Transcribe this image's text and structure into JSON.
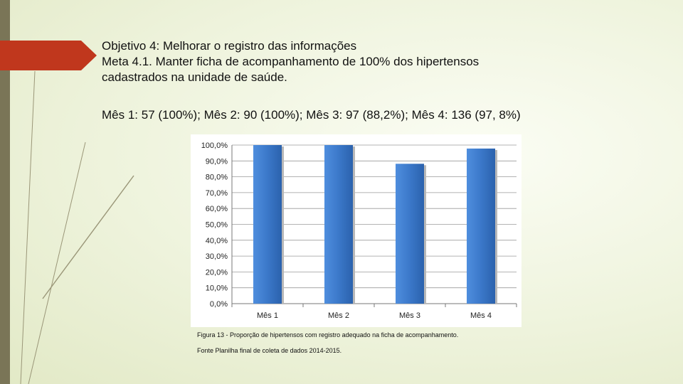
{
  "heading": {
    "line1": "Objetivo 4: Melhorar o registro das informações",
    "line2": "Meta 4.1. Manter ficha de acompanhamento de 100% dos hipertensos",
    "line3": "cadastrados na unidade de saúde."
  },
  "summary": "Mês 1: 57 (100%); Mês 2: 90 (100%); Mês 3: 97 (88,2%); Mês 4: 136 (97, 8%)",
  "colors": {
    "accent": "#c0371d",
    "bar": "#3b78c9",
    "sidebar": "#7a7557"
  },
  "chart_data": {
    "type": "bar",
    "title": "",
    "xlabel": "",
    "ylabel": "",
    "categories": [
      "Mês 1",
      "Mês 2",
      "Mês 3",
      "Mês 4"
    ],
    "values": [
      100.0,
      100.0,
      88.2,
      97.8
    ],
    "ylim": [
      0,
      100
    ],
    "yticks": [
      {
        "value": 0,
        "label": "0,0%"
      },
      {
        "value": 10,
        "label": "10,0%"
      },
      {
        "value": 20,
        "label": "20,0%"
      },
      {
        "value": 30,
        "label": "30,0%"
      },
      {
        "value": 40,
        "label": "40,0%"
      },
      {
        "value": 50,
        "label": "50,0%"
      },
      {
        "value": 60,
        "label": "60,0%"
      },
      {
        "value": 70,
        "label": "70,0%"
      },
      {
        "value": 80,
        "label": "80,0%"
      },
      {
        "value": 90,
        "label": "90,0%"
      },
      {
        "value": 100,
        "label": "100,0%"
      }
    ],
    "grid": true,
    "legend": "none"
  },
  "caption": "Figura 13 - Proporção de hipertensos com registro adequado na ficha de acompanhamento.",
  "source": "Fonte Planilha final de coleta de dados 2014-2015."
}
